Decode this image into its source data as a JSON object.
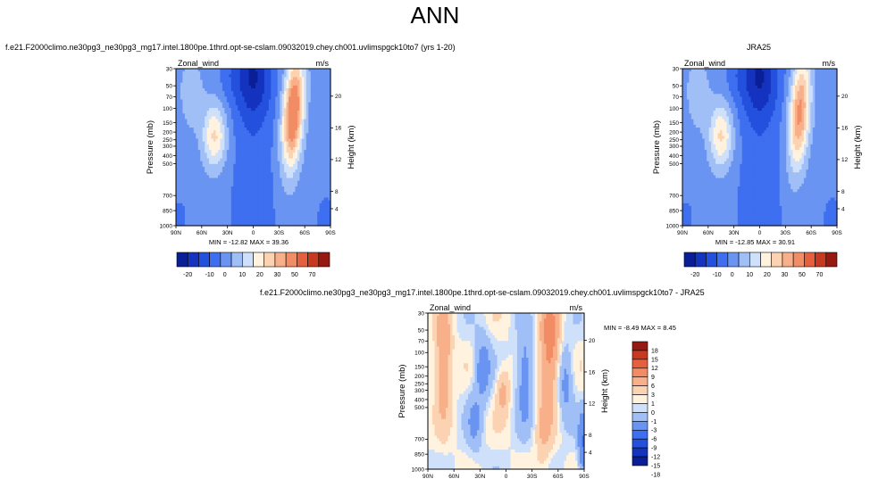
{
  "page_title": "ANN",
  "colors": {
    "full": [
      "#0a1e96",
      "#1433bf",
      "#2450de",
      "#3e6ff0",
      "#6a94f2",
      "#a0bff7",
      "#cfe0fa",
      "#fff3e0",
      "#fbd3b3",
      "#f8b08a",
      "#f28c64",
      "#e5603c",
      "#c73a1f",
      "#961a10"
    ],
    "diff": [
      "#0a1e96",
      "#1433bf",
      "#2450de",
      "#3e6ff0",
      "#6a94f2",
      "#a0bff7",
      "#cfe0fa",
      "#fff3e0",
      "#fbd3b3",
      "#f8b08a",
      "#f28c64",
      "#e5603c",
      "#c73a1f",
      "#961a10"
    ]
  },
  "chart_data": [
    {
      "type": "heatmap",
      "title": "f.e21.F2000climo.ne30pg3_ne30pg3_mg17.intel.1800pe.1thrd.opt-se-cslam.09032019.chey.ch001.uvlimspgck10to7 (yrs 1-20)",
      "left_label": "Zonal_wind",
      "right_label": "m/s",
      "ylabel": "Pressure (mb)",
      "y2label": "Height (km)",
      "xticks": [
        "90N",
        "60N",
        "30N",
        "0",
        "30S",
        "60S",
        "90S"
      ],
      "yticks": [
        "30",
        "50",
        "70",
        "100",
        "150",
        "200",
        "250",
        "300",
        "400",
        "500",
        "700",
        "850",
        "1000"
      ],
      "y2ticks": [
        "20",
        "16",
        "12",
        "8",
        "4"
      ],
      "stats": "MIN = -12.82   MAX =  39.36",
      "colorbar_labels": [
        "-20",
        "-10",
        "0",
        "10",
        "20",
        "30",
        "50",
        "70"
      ]
    },
    {
      "type": "heatmap",
      "title": "JRA25",
      "left_label": "Zonal_wind",
      "right_label": "m/s",
      "ylabel": "Pressure (mb)",
      "y2label": "Height (km)",
      "xticks": [
        "90N",
        "60N",
        "30N",
        "0",
        "30S",
        "60S",
        "90S"
      ],
      "yticks": [
        "30",
        "50",
        "70",
        "100",
        "150",
        "200",
        "250",
        "300",
        "400",
        "500",
        "700",
        "850",
        "1000"
      ],
      "y2ticks": [
        "20",
        "16",
        "12",
        "8",
        "4"
      ],
      "stats": "MIN = -12.85   MAX =  30.91",
      "colorbar_labels": [
        "-20",
        "-10",
        "0",
        "10",
        "20",
        "30",
        "50",
        "70"
      ]
    },
    {
      "type": "heatmap",
      "title": "f.e21.F2000climo.ne30pg3_ne30pg3_mg17.intel.1800pe.1thrd.opt-se-cslam.09032019.chey.ch001.uvlimspgck10to7 - JRA25",
      "left_label": "Zonal_wind",
      "right_label": "m/s",
      "ylabel": "Pressure (mb)",
      "y2label": "Height (km)",
      "xticks": [
        "90N",
        "60N",
        "30N",
        "0",
        "30S",
        "60S",
        "90S"
      ],
      "yticks": [
        "30",
        "50",
        "70",
        "100",
        "150",
        "200",
        "250",
        "300",
        "400",
        "500",
        "700",
        "850",
        "1000"
      ],
      "y2ticks": [
        "20",
        "16",
        "12",
        "8",
        "4"
      ],
      "stats": "MIN =  -8.49   MAX =   8.45",
      "colorbar_labels": [
        "18",
        "15",
        "12",
        "9",
        "6",
        "3",
        "1",
        "0",
        "-1",
        "-3",
        "-6",
        "-9",
        "-12",
        "-15",
        "-18"
      ]
    }
  ]
}
